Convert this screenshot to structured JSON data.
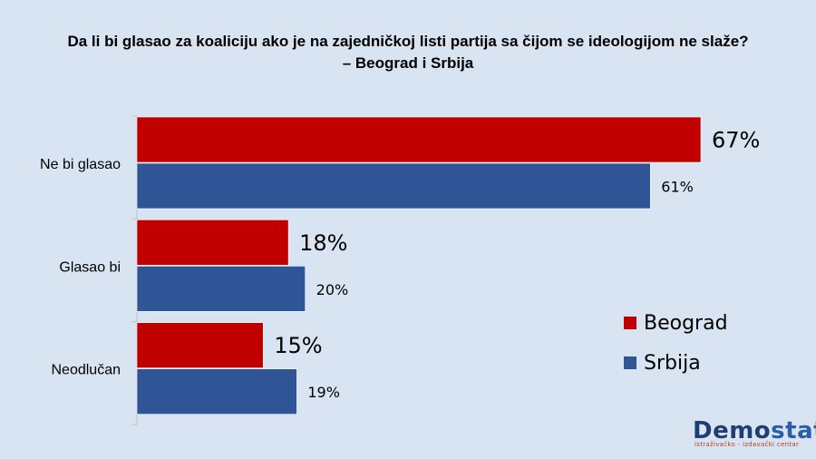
{
  "title_line1": "Da li bi glasao za koaliciju ako je na zajedničkoj listi partija sa čijom se ideologijom ne slaže?",
  "title_line2": "– Beograd i Srbija",
  "chart_data": {
    "type": "bar",
    "orientation": "horizontal",
    "categories": [
      "Ne bi glasao",
      "Glasao bi",
      "Neodlučan"
    ],
    "series": [
      {
        "name": "Beograd",
        "values": [
          67,
          18,
          15
        ],
        "labels": [
          "67%",
          "18%",
          "15%"
        ],
        "color": "#c00000"
      },
      {
        "name": "Srbija",
        "values": [
          61,
          20,
          19
        ],
        "labels": [
          "61%",
          "20%",
          "19%"
        ],
        "color": "#2f5597"
      }
    ],
    "xlim": [
      0,
      70
    ],
    "unit": "%",
    "legend_position": "right"
  },
  "logo": {
    "main_demo": "Demo",
    "main_stat": "stat",
    "subtitle": "istraživačko - izdavački  centar"
  }
}
